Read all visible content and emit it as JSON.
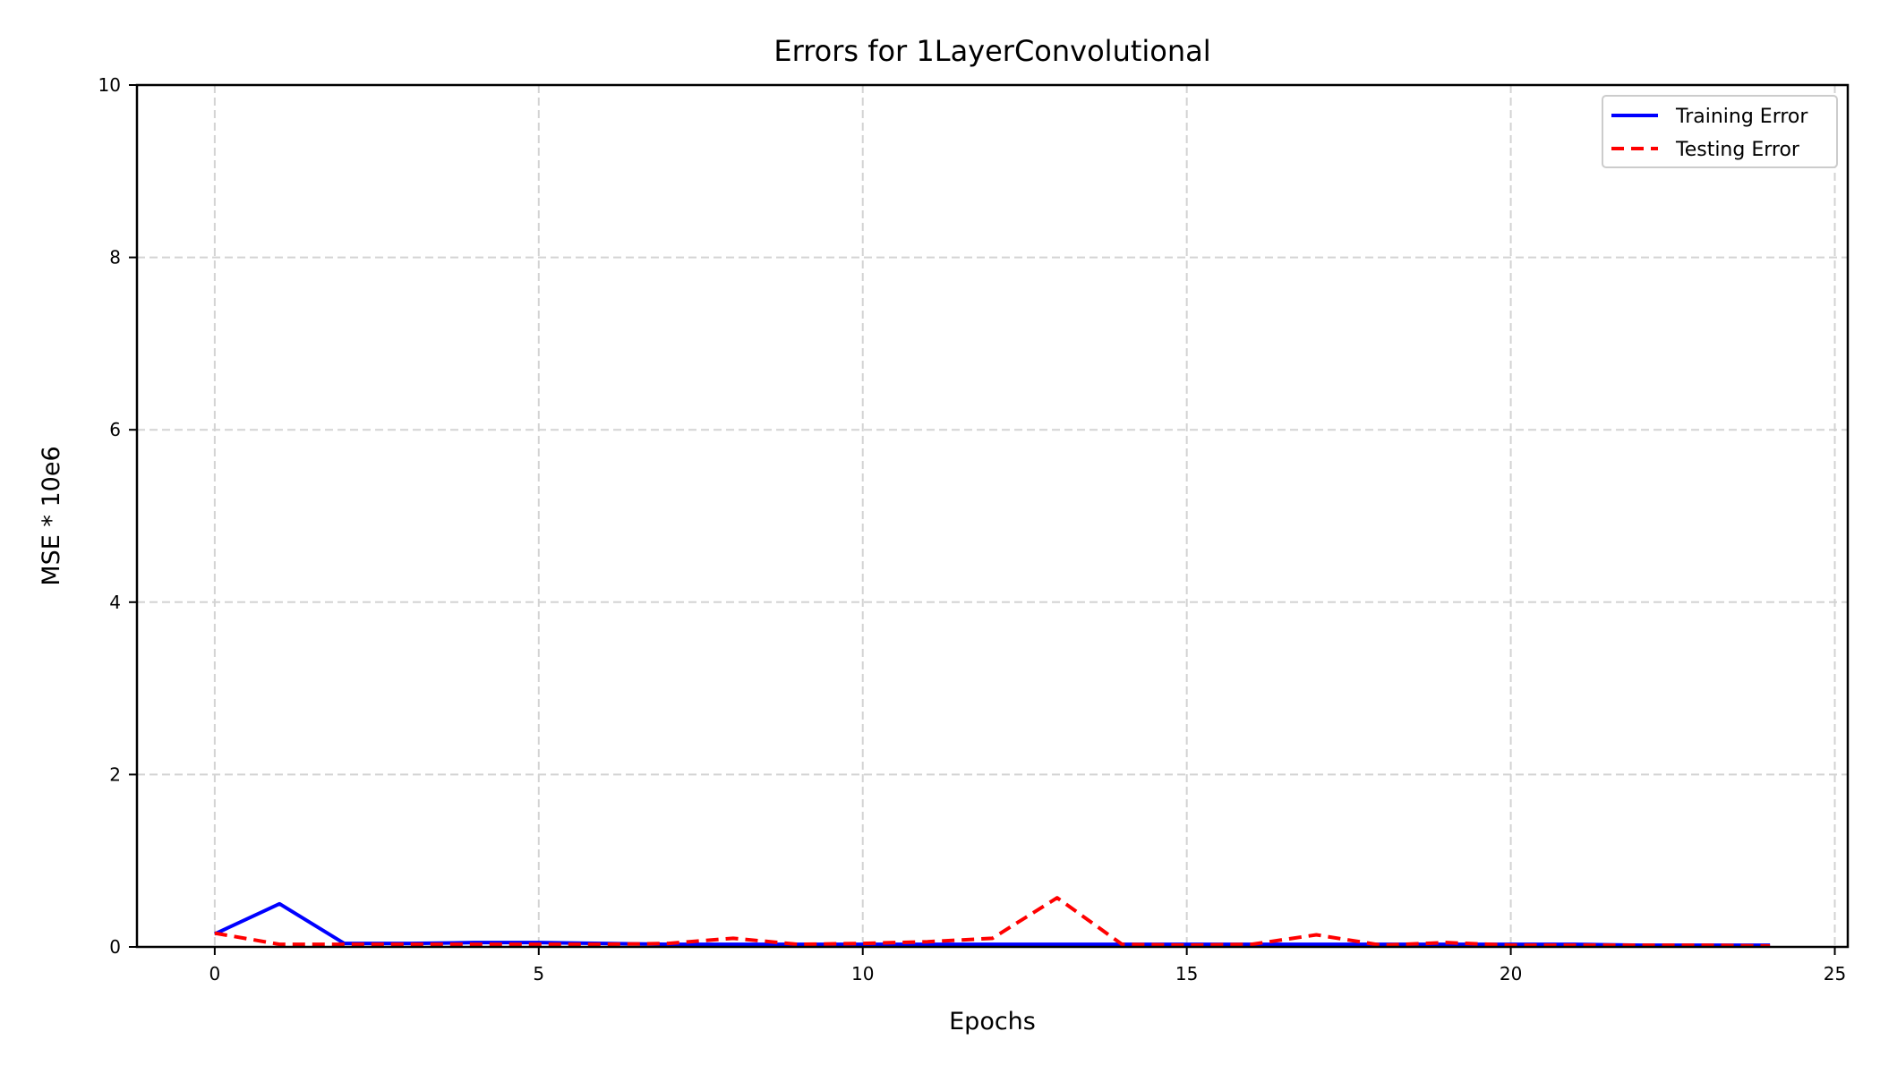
{
  "chart_data": {
    "type": "line",
    "title": "Errors for 1LayerConvolutional",
    "xlabel": "Epochs",
    "ylabel": "MSE * 10e6",
    "xlim": [
      -1.2,
      25.2
    ],
    "ylim": [
      0,
      10
    ],
    "xticks": [
      0,
      5,
      10,
      15,
      20,
      25
    ],
    "yticks": [
      0,
      2,
      4,
      6,
      8,
      10
    ],
    "grid": true,
    "legend_position": "top-right",
    "x": [
      0,
      1,
      2,
      3,
      4,
      5,
      6,
      7,
      8,
      9,
      10,
      11,
      12,
      13,
      14,
      15,
      16,
      17,
      18,
      19,
      20,
      21,
      22,
      23,
      24
    ],
    "series": [
      {
        "name": "Training Error",
        "color": "#0000ff",
        "style": "solid",
        "values": [
          0.15,
          0.5,
          0.04,
          0.04,
          0.05,
          0.05,
          0.04,
          0.03,
          0.03,
          0.03,
          0.03,
          0.03,
          0.03,
          0.03,
          0.03,
          0.03,
          0.03,
          0.03,
          0.03,
          0.03,
          0.03,
          0.03,
          0.02,
          0.02,
          0.02
        ]
      },
      {
        "name": "Testing Error",
        "color": "#ff0000",
        "style": "dashed",
        "values": [
          0.16,
          0.03,
          0.03,
          0.03,
          0.03,
          0.03,
          0.03,
          0.04,
          0.1,
          0.03,
          0.04,
          0.06,
          0.1,
          0.57,
          0.03,
          0.02,
          0.03,
          0.14,
          0.02,
          0.05,
          0.02,
          0.02,
          0.02,
          0.02,
          0.01
        ]
      }
    ]
  }
}
